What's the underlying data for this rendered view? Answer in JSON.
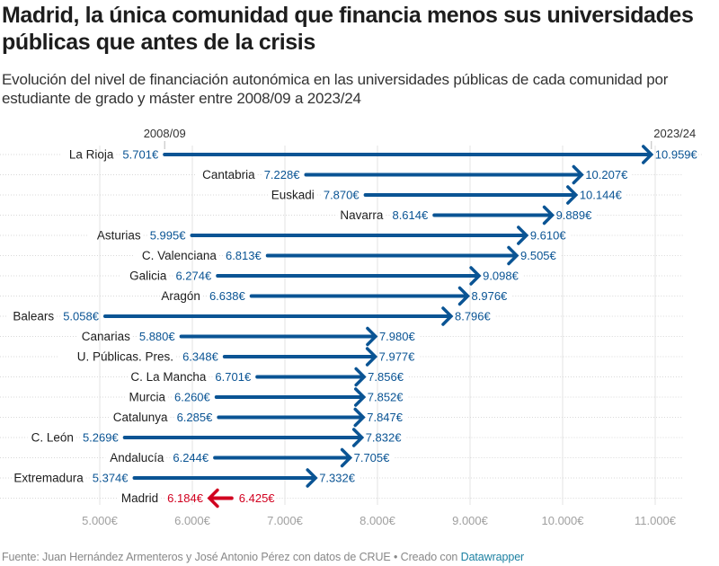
{
  "header": {
    "title": "Madrid, la única comunidad que financia menos sus universidades públicas que antes de la crisis",
    "subtitle": "Evolución del nivel de financiación autonómica en las universidades públicas de cada comunidad por estudiante de grado y máster entre 2008/09 a 2023/24"
  },
  "footer": {
    "source": "Fuente: Juan Hernández Armenteros y José Antonio Pérez con datos de CRUE • Creado con ",
    "credit_link": "Datawrapper"
  },
  "colors": {
    "increase": "#0a5494",
    "decrease": "#d1001f",
    "grid": "#e3e3e3",
    "tick_label": "#a0a0a0"
  },
  "chart_data": {
    "type": "arrow-dot",
    "title": "Madrid, la única comunidad que financia menos sus universidades públicas que antes de la crisis",
    "start_label": "2008/09",
    "end_label": "2023/24",
    "xlim": [
      5000,
      11000
    ],
    "x_ticks": [
      5000,
      6000,
      7000,
      8000,
      9000,
      10000,
      11000
    ],
    "x_tick_labels": [
      "5.000€",
      "6.000€",
      "7.000€",
      "8.000€",
      "9.000€",
      "10.000€",
      "11.000€"
    ],
    "grid": true,
    "rows": [
      {
        "name": "La Rioja",
        "start": 5701,
        "end": 10959,
        "start_label": "5.701€",
        "end_label": "10.959€"
      },
      {
        "name": "Cantabria",
        "start": 7228,
        "end": 10207,
        "start_label": "7.228€",
        "end_label": "10.207€"
      },
      {
        "name": "Euskadi",
        "start": 7870,
        "end": 10144,
        "start_label": "7.870€",
        "end_label": "10.144€"
      },
      {
        "name": "Navarra",
        "start": 8614,
        "end": 9889,
        "start_label": "8.614€",
        "end_label": "9.889€"
      },
      {
        "name": "Asturias",
        "start": 5995,
        "end": 9610,
        "start_label": "5.995€",
        "end_label": "9.610€"
      },
      {
        "name": "C. Valenciana",
        "start": 6813,
        "end": 9505,
        "start_label": "6.813€",
        "end_label": "9.505€"
      },
      {
        "name": "Galicia",
        "start": 6274,
        "end": 9098,
        "start_label": "6.274€",
        "end_label": "9.098€"
      },
      {
        "name": "Aragón",
        "start": 6638,
        "end": 8976,
        "start_label": "6.638€",
        "end_label": "8.976€"
      },
      {
        "name": "Balears",
        "start": 5058,
        "end": 8796,
        "start_label": "5.058€",
        "end_label": "8.796€"
      },
      {
        "name": "Canarias",
        "start": 5880,
        "end": 7980,
        "start_label": "5.880€",
        "end_label": "7.980€"
      },
      {
        "name": "U. Públicas. Pres.",
        "start": 6348,
        "end": 7977,
        "start_label": "6.348€",
        "end_label": "7.977€"
      },
      {
        "name": "C. La Mancha",
        "start": 6701,
        "end": 7856,
        "start_label": "6.701€",
        "end_label": "7.856€"
      },
      {
        "name": "Murcia",
        "start": 6260,
        "end": 7852,
        "start_label": "6.260€",
        "end_label": "7.852€"
      },
      {
        "name": "Catalunya",
        "start": 6285,
        "end": 7847,
        "start_label": "6.285€",
        "end_label": "7.847€"
      },
      {
        "name": "C. León",
        "start": 5269,
        "end": 7832,
        "start_label": "5.269€",
        "end_label": "7.832€"
      },
      {
        "name": "Andalucía",
        "start": 6244,
        "end": 7705,
        "start_label": "6.244€",
        "end_label": "7.705€"
      },
      {
        "name": "Extremadura",
        "start": 5374,
        "end": 7332,
        "start_label": "5.374€",
        "end_label": "7.332€"
      },
      {
        "name": "Madrid",
        "start": 6425,
        "end": 6184,
        "start_label": "6.425€",
        "end_label": "6.184€"
      }
    ]
  }
}
